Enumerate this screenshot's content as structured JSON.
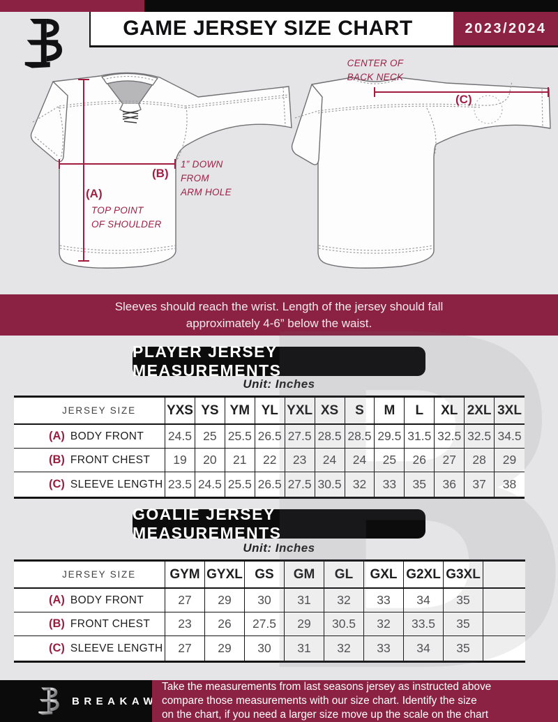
{
  "colors": {
    "maroon": "#8b2143",
    "black": "#0b0b0c",
    "background": "#e5e5e7",
    "measure_line": "#a01d40"
  },
  "header": {
    "title": "GAME JERSEY SIZE CHART",
    "season": "2023/2024"
  },
  "diagram": {
    "front": {
      "a_key": "(A)",
      "a_desc": "TOP POINT\nOF SHOULDER",
      "b_key": "(B)",
      "b_desc": "1” DOWN\nFROM\nARM HOLE"
    },
    "back": {
      "c_key": "(C)",
      "c_desc": "CENTER OF\nBACK NECK"
    }
  },
  "notice": "Sleeves should reach the wrist. Length of the jersey should fall\napproximately 4-6” below the waist.",
  "player_table": {
    "title": "PLAYER JERSEY MEASUREMENTS",
    "unit": "Unit: Inches",
    "size_label": "JERSEY SIZE",
    "columns": [
      "YXS",
      "YS",
      "YM",
      "YL",
      "YXL",
      "XS",
      "S",
      "M",
      "L",
      "XL",
      "2XL",
      "3XL"
    ],
    "rows": [
      {
        "key": "(A)",
        "label": "BODY FRONT",
        "values": [
          "24.5",
          "25",
          "25.5",
          "26.5",
          "27.5",
          "28.5",
          "28.5",
          "29.5",
          "31.5",
          "32.5",
          "32.5",
          "34.5"
        ]
      },
      {
        "key": "(B)",
        "label": "FRONT CHEST",
        "values": [
          "19",
          "20",
          "21",
          "22",
          "23",
          "24",
          "24",
          "25",
          "26",
          "27",
          "28",
          "29"
        ]
      },
      {
        "key": "(C)",
        "label": "SLEEVE LENGTH",
        "values": [
          "23.5",
          "24.5",
          "25.5",
          "26.5",
          "27.5",
          "30.5",
          "32",
          "33",
          "35",
          "36",
          "37",
          "38"
        ]
      }
    ]
  },
  "goalie_table": {
    "title": "GOALIE JERSEY MEASUREMENTS",
    "unit": "Unit: Inches",
    "size_label": "JERSEY SIZE",
    "columns": [
      "GYM",
      "GYXL",
      "GS",
      "GM",
      "GL",
      "GXL",
      "G2XL",
      "G3XL"
    ],
    "rows": [
      {
        "key": "(A)",
        "label": "BODY FRONT",
        "values": [
          "27",
          "29",
          "30",
          "31",
          "32",
          "33",
          "34",
          "35"
        ]
      },
      {
        "key": "(B)",
        "label": "FRONT CHEST",
        "values": [
          "23",
          "26",
          "27.5",
          "29",
          "30.5",
          "32",
          "33.5",
          "35"
        ]
      },
      {
        "key": "(C)",
        "label": "SLEEVE LENGTH",
        "values": [
          "27",
          "29",
          "30",
          "31",
          "32",
          "33",
          "34",
          "35"
        ]
      }
    ]
  },
  "watermark": {
    "glyph": "B"
  },
  "footer": {
    "brand": "BREAKAWAY",
    "note": "Take the measurements from last seasons jersey as instructed above\ncompare those measurements  with our size chart. Identify the size\non the chart, if you need a larger size move up the scale on the chart"
  }
}
